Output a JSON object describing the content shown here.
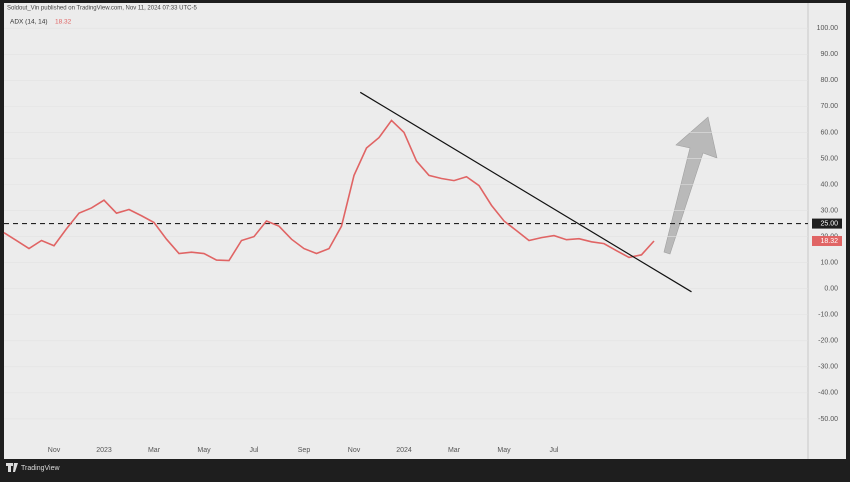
{
  "header": {
    "publisher": "Soldout_Vin published on TradingView.com, Nov 11, 2024 07:33 UTC-5",
    "brand": "TradingView"
  },
  "chart_data": {
    "type": "line",
    "categories": [
      null,
      null,
      null,
      null,
      "Nov",
      null,
      null,
      null,
      "2023",
      null,
      null,
      null,
      "Mar",
      null,
      null,
      null,
      "May",
      null,
      null,
      null,
      "Jul",
      null,
      null,
      null,
      "Sep",
      null,
      null,
      null,
      "Nov",
      null,
      null,
      null,
      "2024",
      null,
      null,
      null,
      "Mar",
      null,
      null,
      null,
      "May",
      null,
      null,
      null,
      "Jul",
      null,
      null,
      null,
      null,
      null,
      null,
      null,
      null,
      null,
      null,
      null,
      null,
      null,
      null,
      null,
      null,
      null,
      null,
      null,
      null
    ],
    "series": [
      {
        "name": "ADX (14, 14)",
        "color": "#e06464",
        "values": [
          21.5,
          18.5,
          15.4,
          18.5,
          16.5,
          23,
          29,
          31,
          34,
          29,
          30.4,
          28,
          25.4,
          19,
          13.5,
          14,
          13.5,
          11,
          10.8,
          18.5,
          20,
          26,
          24,
          19,
          15.4,
          13.5,
          15.4,
          24,
          43.5,
          54,
          58,
          64.6,
          60,
          49,
          43.5,
          42.3,
          41.5,
          43,
          39.6,
          32,
          26,
          22.3,
          18.5,
          19.6,
          20.4,
          18.8,
          19.2,
          18,
          17.3,
          14.6,
          12,
          13,
          18.32,
          null,
          null,
          null,
          null,
          null,
          null,
          null,
          null,
          null,
          null,
          null,
          null
        ]
      }
    ],
    "current_value": 18.32,
    "reference_line": {
      "value": 25,
      "label": "25.00"
    },
    "trendline": {
      "x": [
        28.5,
        55
      ],
      "y": [
        75.4,
        -1.2
      ]
    },
    "ylim": [
      -65,
      107
    ],
    "yticks": [
      {
        "value": 100,
        "label": "100.00"
      },
      {
        "value": 90,
        "label": "90.00"
      },
      {
        "value": 80,
        "label": "80.00"
      },
      {
        "value": 70,
        "label": "70.00"
      },
      {
        "value": 60,
        "label": "60.00"
      },
      {
        "value": 50,
        "label": "50.00"
      },
      {
        "value": 40,
        "label": "40.00"
      },
      {
        "value": 30,
        "label": "30.00"
      },
      {
        "value": 20,
        "label": "20.00"
      },
      {
        "value": 10,
        "label": "10.00"
      },
      {
        "value": 0,
        "label": "0.00"
      },
      {
        "value": -10,
        "label": "-10.00"
      },
      {
        "value": -20,
        "label": "-20.00"
      },
      {
        "value": -30,
        "label": "-30.00"
      },
      {
        "value": -40,
        "label": "-40.00"
      },
      {
        "value": -50,
        "label": "-50.00"
      }
    ],
    "grid": true
  }
}
